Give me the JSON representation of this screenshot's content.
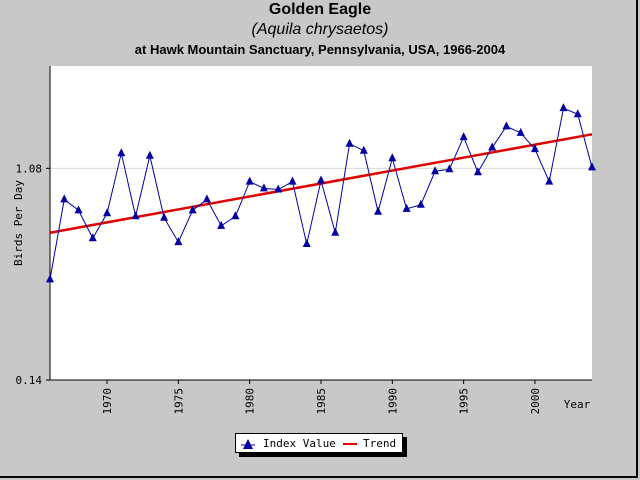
{
  "header": {
    "title": "Golden Eagle",
    "subtitle": "(Aquila chrysaetos)",
    "caption": "at Hawk Mountain Sanctuary, Pennsylvania, USA, 1966-2004"
  },
  "chart_data": {
    "type": "line",
    "title": "Golden Eagle",
    "xlabel": "Year",
    "ylabel": "Birds Per Day",
    "yscale": "log",
    "ylim": [
      0.14,
      2.9
    ],
    "xlim": [
      1966,
      2004
    ],
    "x_ticks": [
      "1970",
      "1975",
      "1980",
      "1985",
      "1990",
      "1995",
      "2000"
    ],
    "y_ticks": [
      "0.14",
      "1.08"
    ],
    "grid": "horizontal at 1.08",
    "legend_position": "bottom-center",
    "series": [
      {
        "name": "Index Value",
        "color": "#0000a0",
        "marker": "triangle",
        "x": [
          1966,
          1967,
          1968,
          1969,
          1970,
          1971,
          1972,
          1973,
          1974,
          1975,
          1976,
          1977,
          1978,
          1979,
          1980,
          1981,
          1982,
          1983,
          1984,
          1985,
          1986,
          1987,
          1988,
          1989,
          1990,
          1991,
          1992,
          1993,
          1994,
          1995,
          1996,
          1997,
          1998,
          1999,
          2000,
          2001,
          2002,
          2003,
          2004
        ],
        "values": [
          0.37,
          0.8,
          0.72,
          0.55,
          0.7,
          1.25,
          0.68,
          1.22,
          0.67,
          0.53,
          0.72,
          0.8,
          0.62,
          0.68,
          0.95,
          0.89,
          0.88,
          0.95,
          0.52,
          0.96,
          0.58,
          1.37,
          1.28,
          0.71,
          1.19,
          0.73,
          0.76,
          1.05,
          1.07,
          1.46,
          1.04,
          1.32,
          1.62,
          1.52,
          1.3,
          0.95,
          1.93,
          1.82,
          1.09
        ]
      },
      {
        "name": "Trend",
        "color": "#e00000",
        "x": [
          1966,
          2004
        ],
        "values": [
          0.58,
          1.5
        ]
      }
    ]
  },
  "legend": {
    "items": [
      "Index Value",
      "Trend"
    ]
  }
}
